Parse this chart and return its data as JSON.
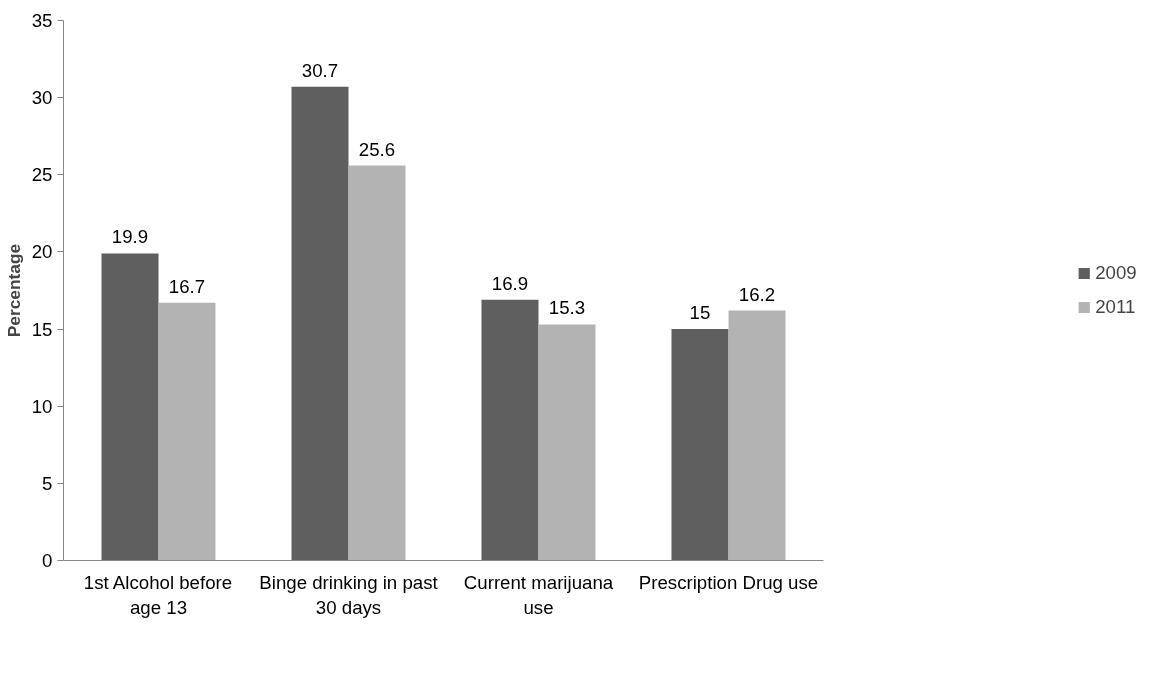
{
  "chart_data": {
    "type": "bar",
    "ylabel": "Percentage",
    "categories": [
      "1st Alcohol before\nage 13",
      "Binge drinking in past\n30 days",
      "Current marijuana\nuse",
      "Prescription Drug use"
    ],
    "series": [
      {
        "name": "2009",
        "color": "#5f5f5f",
        "values": [
          19.9,
          30.7,
          16.9,
          15
        ]
      },
      {
        "name": "2011",
        "color": "#b3b3b3",
        "values": [
          16.7,
          25.6,
          15.3,
          16.2
        ]
      }
    ],
    "ylim": [
      0,
      35
    ],
    "yticks": [
      0,
      5,
      10,
      15,
      20,
      25,
      30,
      35
    ],
    "grid": false,
    "legend": "right",
    "data_labels": true
  }
}
